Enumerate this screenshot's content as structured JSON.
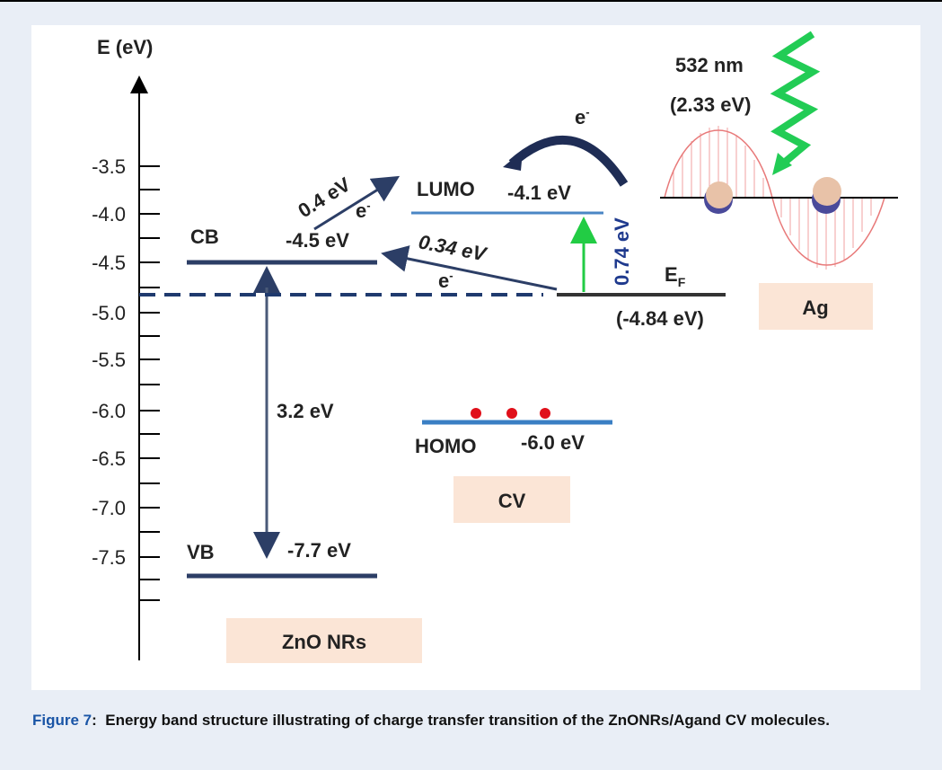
{
  "figure": {
    "axis_label": "E (eV)",
    "ticks": [
      "-3.5",
      "-4.0",
      "-4.5",
      "-5.0",
      "-5.5",
      "-6.0",
      "-6.5",
      "-7.0",
      "-7.5"
    ],
    "zno": {
      "cb": "CB",
      "cb_energy": "-4.5 eV",
      "vb": "VB",
      "vb_energy": "-7.7 eV",
      "gap": "3.2 eV",
      "name": "ZnO NRs"
    },
    "cv": {
      "lumo": "LUMO",
      "lumo_energy": "-4.1 eV",
      "homo": "HOMO",
      "homo_energy": "-6.0 eV",
      "name": "CV"
    },
    "ag": {
      "ef": "E",
      "ef_sub": "F",
      "ef_energy": "(-4.84 eV)",
      "name": "Ag"
    },
    "transfers": {
      "t1": "0.4 eV",
      "t1_e": "e",
      "t2": "0.34 eV",
      "t2_e": "e",
      "t3": "0.74 eV",
      "top_e": "e",
      "minus": "-"
    },
    "light": {
      "wavelength": "532 nm",
      "energy": "(2.33 eV)"
    }
  },
  "caption": {
    "label": "Figure 7",
    "separator": ":",
    "text": "Energy band structure illustrating of charge transfer transition of the ZnONRs/Agand CV molecules."
  }
}
